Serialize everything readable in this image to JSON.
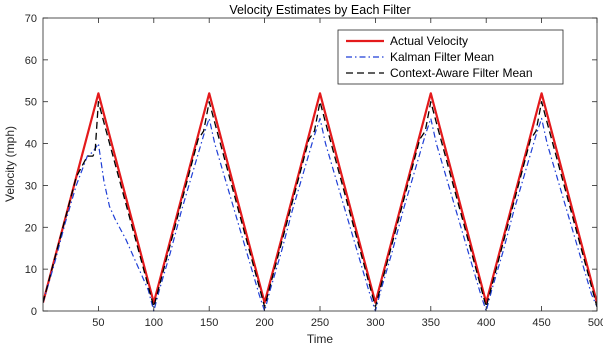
{
  "chart_data": {
    "type": "line",
    "title": "Velocity Estimates  by Each Filter",
    "xlabel": "Time",
    "ylabel": "Velocity (mph)",
    "xlim": [
      0,
      500
    ],
    "ylim": [
      0,
      70
    ],
    "xticks": [
      50,
      100,
      150,
      200,
      250,
      300,
      350,
      400,
      450,
      500
    ],
    "yticks": [
      0,
      10,
      20,
      30,
      40,
      50,
      60,
      70
    ],
    "grid": false,
    "legend_position": "top-right",
    "series": [
      {
        "name": "Actual Velocity",
        "color": "#e41a1c",
        "style": "solid",
        "x": [
          0,
          50,
          100,
          150,
          200,
          250,
          300,
          350,
          400,
          450,
          500
        ],
        "y": [
          2,
          52,
          2,
          52,
          2,
          52,
          2,
          52,
          2,
          52,
          2
        ]
      },
      {
        "name": "Kalman Filter Mean",
        "color": "#1f3fd6",
        "style": "dashdot",
        "x": [
          0,
          10,
          20,
          30,
          40,
          45,
          50,
          55,
          60,
          65,
          75,
          85,
          95,
          100,
          105,
          115,
          125,
          135,
          145,
          150,
          155,
          165,
          175,
          185,
          195,
          200,
          205,
          215,
          225,
          235,
          245,
          250,
          255,
          265,
          275,
          285,
          295,
          300,
          305,
          315,
          325,
          335,
          345,
          350,
          355,
          365,
          375,
          385,
          395,
          400,
          405,
          415,
          425,
          435,
          445,
          450,
          455,
          465,
          475,
          485,
          495,
          500
        ],
        "y": [
          2,
          11,
          21,
          30,
          37,
          38,
          40,
          31,
          25,
          22,
          17,
          11,
          5,
          0,
          5,
          14,
          24,
          33,
          42,
          46,
          40,
          31,
          22,
          13,
          4,
          0,
          5,
          14,
          24,
          33,
          42,
          46,
          40,
          31,
          22,
          13,
          4,
          0,
          5,
          14,
          24,
          33,
          42,
          46,
          40,
          31,
          22,
          13,
          4,
          0,
          5,
          14,
          24,
          33,
          42,
          46,
          40,
          31,
          22,
          13,
          4,
          1
        ]
      },
      {
        "name": "Context-Aware Filter Mean",
        "color": "#000000",
        "style": "dashed",
        "x": [
          0,
          10,
          20,
          30,
          40,
          45,
          47,
          50,
          55,
          100,
          105,
          140,
          145,
          150,
          155,
          200,
          205,
          240,
          245,
          250,
          255,
          300,
          305,
          340,
          345,
          350,
          355,
          400,
          405,
          440,
          445,
          450,
          455,
          500
        ],
        "y": [
          2,
          12,
          22,
          32,
          37,
          37,
          38,
          50,
          45,
          1,
          6,
          41,
          43,
          50,
          45,
          1,
          6,
          41,
          43,
          50,
          45,
          1,
          6,
          41,
          43,
          50,
          45,
          1,
          6,
          41,
          43,
          50,
          45,
          1
        ]
      }
    ]
  }
}
